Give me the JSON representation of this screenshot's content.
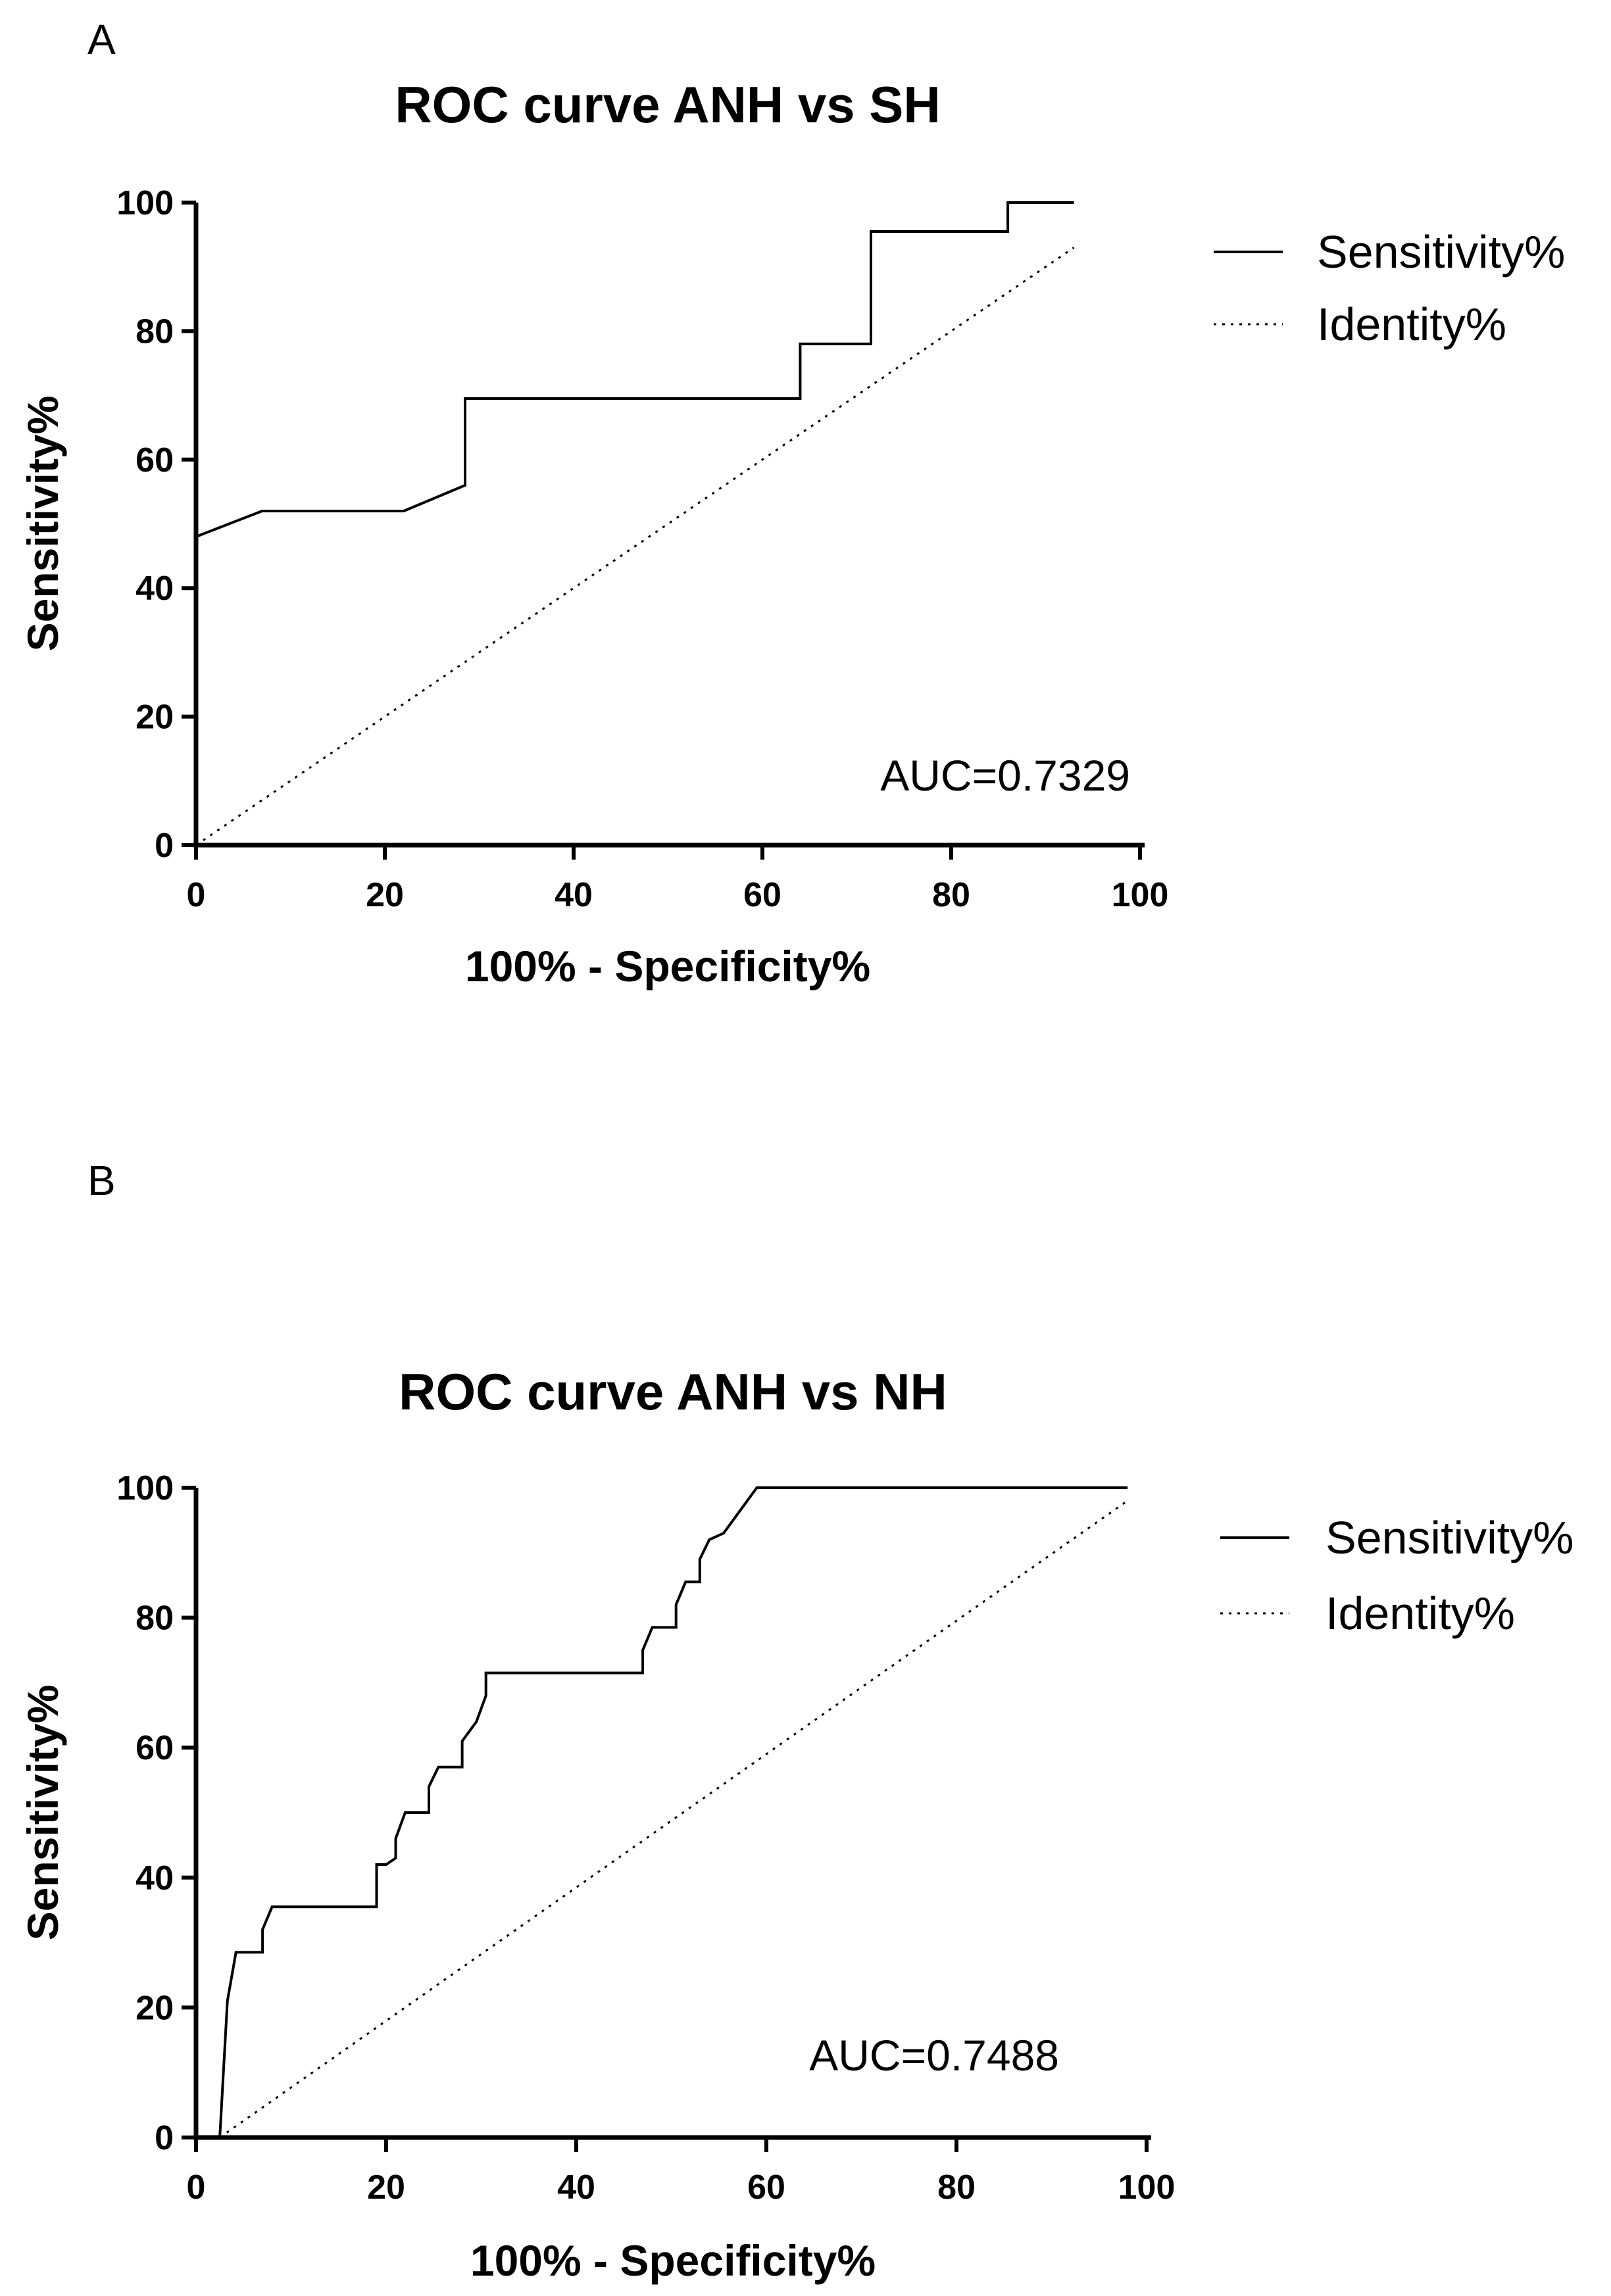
{
  "chart_data": [
    {
      "type": "line",
      "panel": "A",
      "title": "ROC curve ANH vs SH",
      "xlabel": "100% - Specificity%",
      "ylabel": "Sensitivity%",
      "xlim": [
        0,
        100
      ],
      "ylim": [
        0,
        100
      ],
      "xticks": [
        0,
        20,
        40,
        60,
        80,
        100
      ],
      "yticks": [
        0,
        20,
        40,
        60,
        80,
        100
      ],
      "grid": false,
      "legend_position": "right",
      "annotation": "AUC=0.7329",
      "series": [
        {
          "name": "Sensitivity%",
          "style": "solid",
          "x": [
            0,
            7,
            22,
            28.5,
            28.5,
            64,
            64,
            71.5,
            71.5,
            86,
            86,
            93
          ],
          "y": [
            48,
            52,
            52,
            56,
            69.5,
            69.5,
            78,
            78,
            95.5,
            95.5,
            100,
            100
          ]
        },
        {
          "name": "Identity%",
          "style": "dotted",
          "x": [
            0,
            93
          ],
          "y": [
            0,
            93
          ]
        }
      ]
    },
    {
      "type": "line",
      "panel": "B",
      "title": "ROC curve ANH vs NH",
      "xlabel": "100% - Specificity%",
      "ylabel": "Sensitivity%",
      "xlim": [
        0,
        100
      ],
      "ylim": [
        0,
        100
      ],
      "xticks": [
        0,
        20,
        40,
        60,
        80,
        100
      ],
      "yticks": [
        0,
        20,
        40,
        60,
        80,
        100
      ],
      "grid": false,
      "legend_position": "right",
      "annotation": "AUC=0.7488",
      "series": [
        {
          "name": "Sensitivity%",
          "style": "solid",
          "x": [
            2.5,
            3.3,
            4.2,
            4.2,
            7,
            7,
            8,
            19,
            19,
            20,
            21,
            21,
            22,
            22,
            24.5,
            24.5,
            25.5,
            25.5,
            28,
            28,
            29.5,
            29.5,
            30.5,
            30.5,
            47,
            47,
            48,
            50.5,
            50.5,
            51.5,
            53,
            53,
            54,
            54,
            55.5,
            59,
            98
          ],
          "y": [
            0,
            21,
            28.5,
            28.5,
            28.5,
            32,
            35.5,
            35.5,
            42,
            42,
            43,
            46,
            50,
            50,
            50,
            54,
            57,
            57,
            57,
            61,
            64,
            64,
            68,
            71.5,
            71.5,
            75,
            78.5,
            78.5,
            82,
            85.5,
            85.5,
            89,
            92,
            92,
            93,
            100,
            100
          ]
        },
        {
          "name": "Identity%",
          "style": "dotted",
          "x": [
            2.5,
            98
          ],
          "y": [
            0,
            98
          ]
        }
      ]
    }
  ]
}
